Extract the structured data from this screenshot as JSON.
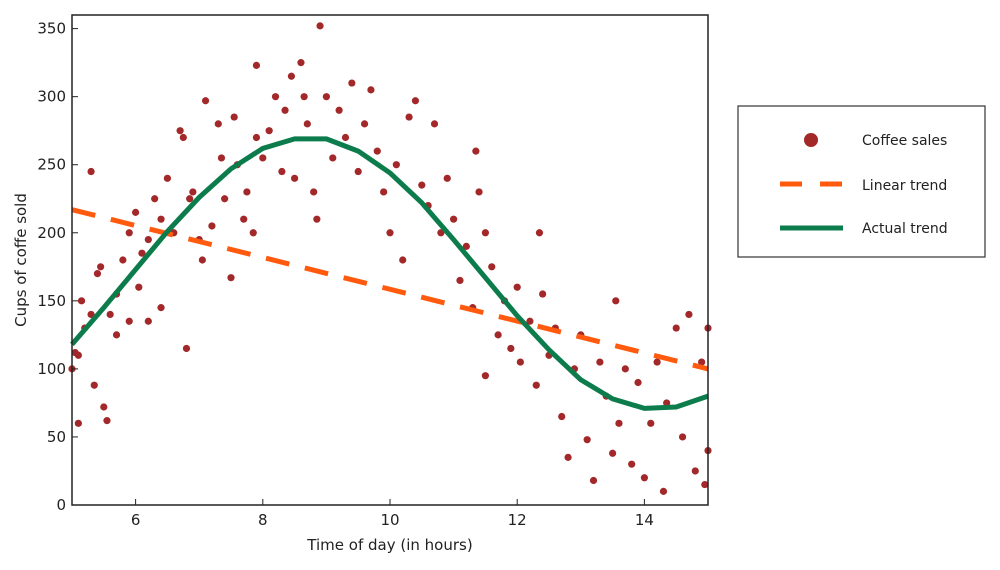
{
  "chart_data": {
    "type": "scatter",
    "title": "",
    "xlabel": "Time of day (in hours)",
    "ylabel": "Cups of coffe sold",
    "xlim": [
      5,
      15
    ],
    "ylim": [
      0,
      360
    ],
    "xticks": [
      6,
      8,
      10,
      12,
      14
    ],
    "yticks": [
      0,
      50,
      100,
      150,
      200,
      250,
      300,
      350
    ],
    "grid": false,
    "legend_position": "right, outside",
    "colors": {
      "scatter": "#a3282a",
      "linear": "#ff5a0e",
      "actual": "#0d7c4c"
    },
    "legend": [
      "Coffee sales",
      "Linear trend",
      "Actual trend"
    ],
    "series": [
      {
        "name": "Coffee sales",
        "kind": "scatter",
        "points": [
          [
            5.0,
            100
          ],
          [
            5.05,
            112
          ],
          [
            5.1,
            60
          ],
          [
            5.1,
            110
          ],
          [
            5.15,
            150
          ],
          [
            5.2,
            130
          ],
          [
            5.3,
            245
          ],
          [
            5.3,
            140
          ],
          [
            5.35,
            88
          ],
          [
            5.4,
            170
          ],
          [
            5.45,
            175
          ],
          [
            5.5,
            72
          ],
          [
            5.55,
            62
          ],
          [
            5.6,
            140
          ],
          [
            5.7,
            125
          ],
          [
            5.7,
            155
          ],
          [
            5.8,
            180
          ],
          [
            5.9,
            200
          ],
          [
            5.9,
            135
          ],
          [
            6.0,
            215
          ],
          [
            6.05,
            160
          ],
          [
            6.1,
            185
          ],
          [
            6.2,
            195
          ],
          [
            6.2,
            135
          ],
          [
            6.3,
            225
          ],
          [
            6.4,
            145
          ],
          [
            6.4,
            210
          ],
          [
            6.5,
            240
          ],
          [
            6.6,
            200
          ],
          [
            6.7,
            275
          ],
          [
            6.75,
            270
          ],
          [
            6.8,
            115
          ],
          [
            6.85,
            225
          ],
          [
            6.9,
            230
          ],
          [
            7.0,
            195
          ],
          [
            7.05,
            180
          ],
          [
            7.1,
            297
          ],
          [
            7.2,
            205
          ],
          [
            7.3,
            280
          ],
          [
            7.35,
            255
          ],
          [
            7.4,
            225
          ],
          [
            7.5,
            167
          ],
          [
            7.55,
            285
          ],
          [
            7.6,
            250
          ],
          [
            7.7,
            210
          ],
          [
            7.75,
            230
          ],
          [
            7.85,
            200
          ],
          [
            7.9,
            323
          ],
          [
            7.9,
            270
          ],
          [
            8.0,
            255
          ],
          [
            8.1,
            275
          ],
          [
            8.2,
            300
          ],
          [
            8.3,
            245
          ],
          [
            8.35,
            290
          ],
          [
            8.45,
            315
          ],
          [
            8.5,
            240
          ],
          [
            8.6,
            325
          ],
          [
            8.65,
            300
          ],
          [
            8.7,
            280
          ],
          [
            8.8,
            230
          ],
          [
            8.85,
            210
          ],
          [
            8.9,
            352
          ],
          [
            9.0,
            300
          ],
          [
            9.1,
            255
          ],
          [
            9.2,
            290
          ],
          [
            9.3,
            270
          ],
          [
            9.4,
            310
          ],
          [
            9.5,
            245
          ],
          [
            9.6,
            280
          ],
          [
            9.7,
            305
          ],
          [
            9.8,
            260
          ],
          [
            9.9,
            230
          ],
          [
            10.0,
            200
          ],
          [
            10.1,
            250
          ],
          [
            10.2,
            180
          ],
          [
            10.3,
            285
          ],
          [
            10.4,
            297
          ],
          [
            10.5,
            235
          ],
          [
            10.6,
            220
          ],
          [
            10.7,
            280
          ],
          [
            10.8,
            200
          ],
          [
            10.9,
            240
          ],
          [
            11.0,
            210
          ],
          [
            11.1,
            165
          ],
          [
            11.2,
            190
          ],
          [
            11.3,
            145
          ],
          [
            11.35,
            260
          ],
          [
            11.4,
            230
          ],
          [
            11.5,
            95
          ],
          [
            11.5,
            200
          ],
          [
            11.6,
            175
          ],
          [
            11.7,
            125
          ],
          [
            11.8,
            150
          ],
          [
            11.9,
            115
          ],
          [
            12.0,
            160
          ],
          [
            12.05,
            105
          ],
          [
            12.2,
            135
          ],
          [
            12.3,
            88
          ],
          [
            12.35,
            200
          ],
          [
            12.4,
            155
          ],
          [
            12.5,
            110
          ],
          [
            12.6,
            130
          ],
          [
            12.7,
            65
          ],
          [
            12.8,
            35
          ],
          [
            12.9,
            100
          ],
          [
            13.0,
            125
          ],
          [
            13.1,
            48
          ],
          [
            13.2,
            18
          ],
          [
            13.3,
            105
          ],
          [
            13.4,
            80
          ],
          [
            13.5,
            38
          ],
          [
            13.55,
            150
          ],
          [
            13.6,
            60
          ],
          [
            13.7,
            100
          ],
          [
            13.8,
            30
          ],
          [
            13.9,
            90
          ],
          [
            14.0,
            20
          ],
          [
            14.1,
            60
          ],
          [
            14.2,
            105
          ],
          [
            14.3,
            10
          ],
          [
            14.35,
            75
          ],
          [
            14.5,
            130
          ],
          [
            14.6,
            50
          ],
          [
            14.7,
            140
          ],
          [
            14.8,
            25
          ],
          [
            14.9,
            105
          ],
          [
            14.95,
            15
          ],
          [
            15.0,
            130
          ],
          [
            15.0,
            40
          ]
        ]
      },
      {
        "name": "Linear trend",
        "kind": "line-dashed",
        "x": [
          5,
          15
        ],
        "y": [
          217,
          100
        ]
      },
      {
        "name": "Actual trend",
        "kind": "line",
        "x": [
          5,
          5.5,
          6,
          6.5,
          7,
          7.5,
          8,
          8.5,
          9,
          9.5,
          10,
          10.5,
          11,
          11.5,
          12,
          12.5,
          13,
          13.5,
          14,
          14.5,
          15
        ],
        "y": [
          118,
          145,
          173,
          201,
          226,
          247,
          262,
          269,
          269,
          260,
          244,
          222,
          195,
          167,
          139,
          114,
          92,
          78,
          71,
          72,
          80
        ]
      }
    ]
  }
}
